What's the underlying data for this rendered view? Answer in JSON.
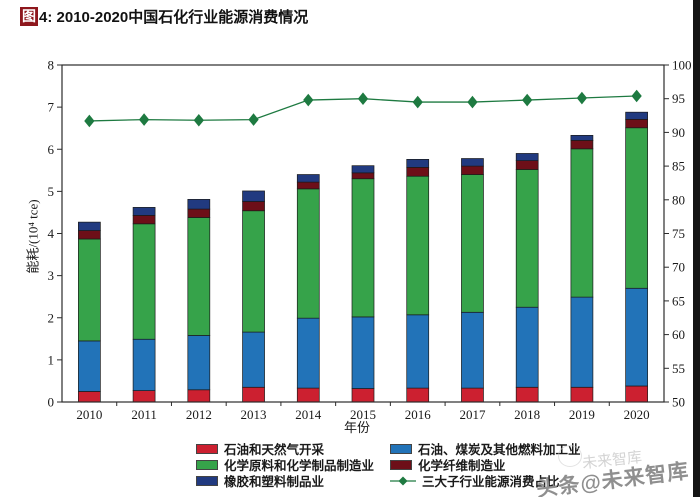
{
  "title": {
    "box": "图",
    "text": "4: 2010-2020中国石化行业能源消费情况"
  },
  "watermark": {
    "main": "头条@未来智库",
    "ghost": "未来智库"
  },
  "chart_data": {
    "type": "bar",
    "stacked": true,
    "categories": [
      "2010",
      "2011",
      "2012",
      "2013",
      "2014",
      "2015",
      "2016",
      "2017",
      "2018",
      "2019",
      "2020"
    ],
    "series": [
      {
        "name": "石油和天然气开采",
        "color": "#cc2030",
        "values": [
          0.25,
          0.27,
          0.29,
          0.35,
          0.33,
          0.32,
          0.33,
          0.33,
          0.35,
          0.35,
          0.38
        ]
      },
      {
        "name": "石油、煤炭及其他燃料加工业",
        "color": "#2273b8",
        "values": [
          1.2,
          1.22,
          1.29,
          1.31,
          1.66,
          1.7,
          1.74,
          1.8,
          1.9,
          2.14,
          2.32
        ]
      },
      {
        "name": "化学原料和化学制品制造业",
        "color": "#36a34a",
        "values": [
          2.42,
          2.74,
          2.8,
          2.88,
          3.07,
          3.28,
          3.29,
          3.27,
          3.27,
          3.52,
          3.81
        ]
      },
      {
        "name": "化学纤维制造业",
        "color": "#6d0f18",
        "values": [
          0.2,
          0.2,
          0.2,
          0.22,
          0.16,
          0.14,
          0.21,
          0.2,
          0.21,
          0.2,
          0.2
        ]
      },
      {
        "name": "橡胶和塑料制品业",
        "color": "#213a80",
        "values": [
          0.2,
          0.19,
          0.23,
          0.25,
          0.18,
          0.17,
          0.19,
          0.18,
          0.17,
          0.12,
          0.17
        ]
      }
    ],
    "line_series": {
      "name": "三大子行业能源消费占比",
      "color": "#1e7a41",
      "axis": "right",
      "values": [
        91.7,
        91.9,
        91.8,
        91.9,
        94.8,
        95.0,
        94.5,
        94.5,
        94.8,
        95.1,
        95.4
      ]
    },
    "ylabel": "能耗/(10⁴ tce)",
    "xlabel": "年份",
    "ylim_left": [
      0,
      8
    ],
    "yticks_left": [
      0,
      1,
      2,
      3,
      4,
      5,
      6,
      7,
      8
    ],
    "ylim_right": [
      50,
      100
    ],
    "yticks_right": [
      50,
      55,
      60,
      65,
      70,
      75,
      80,
      85,
      90,
      95,
      100
    ],
    "grid": false,
    "legend_position": "bottom",
    "legend": {
      "columns": [
        [
          {
            "series": 0
          },
          {
            "series": 2
          },
          {
            "series": 4
          }
        ],
        [
          {
            "series": 1
          },
          {
            "series": 3
          },
          {
            "line": true
          }
        ]
      ]
    }
  }
}
